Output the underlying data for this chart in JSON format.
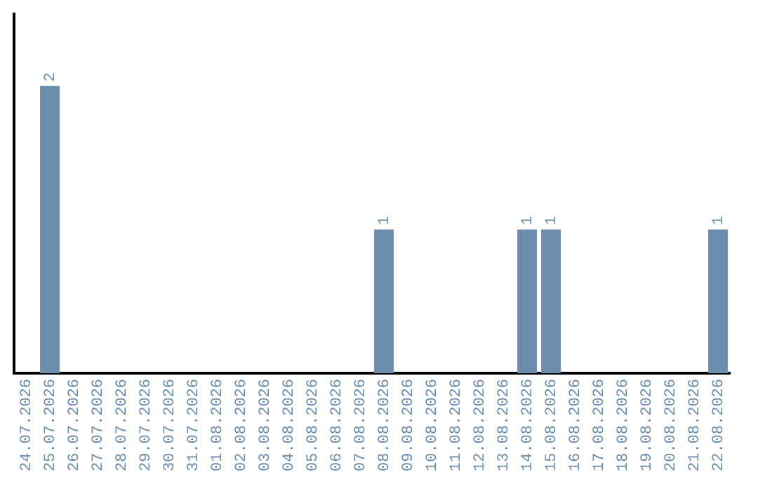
{
  "chart_data": {
    "type": "bar",
    "categories": [
      "24.07.2026",
      "25.07.2026",
      "26.07.2026",
      "27.07.2026",
      "28.07.2026",
      "29.07.2026",
      "30.07.2026",
      "31.07.2026",
      "01.08.2026",
      "02.08.2026",
      "03.08.2026",
      "04.08.2026",
      "05.08.2026",
      "06.08.2026",
      "07.08.2026",
      "08.08.2026",
      "09.08.2026",
      "10.08.2026",
      "11.08.2026",
      "12.08.2026",
      "13.08.2026",
      "14.08.2026",
      "15.08.2026",
      "16.08.2026",
      "17.08.2026",
      "18.08.2026",
      "19.08.2026",
      "20.08.2026",
      "21.08.2026",
      "22.08.2026"
    ],
    "values": [
      0,
      2,
      0,
      0,
      0,
      0,
      0,
      0,
      0,
      0,
      0,
      0,
      0,
      0,
      0,
      1,
      0,
      0,
      0,
      0,
      0,
      1,
      1,
      0,
      0,
      0,
      0,
      0,
      0,
      1
    ],
    "value_labels": [
      null,
      "2",
      null,
      null,
      null,
      null,
      null,
      null,
      null,
      null,
      null,
      null,
      null,
      null,
      null,
      "1",
      null,
      null,
      null,
      null,
      null,
      "1",
      "1",
      null,
      null,
      null,
      null,
      null,
      null,
      "1"
    ],
    "color": "#6b8cab",
    "grid": false,
    "legend": false,
    "tick_labels": "x"
  }
}
